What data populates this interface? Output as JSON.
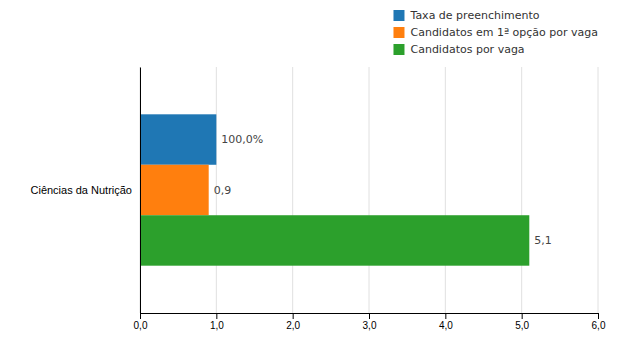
{
  "chart_data": {
    "type": "bar",
    "orientation": "horizontal",
    "categories": [
      "Ciências da Nutrição"
    ],
    "series": [
      {
        "name": "Taxa de preenchimento",
        "values": [
          1.0
        ],
        "value_labels": [
          "100,0%"
        ]
      },
      {
        "name": "Candidatos em 1ª opção por vaga",
        "values": [
          0.9
        ],
        "value_labels": [
          "0,9"
        ]
      },
      {
        "name": "Candidatos por vaga",
        "values": [
          5.1
        ],
        "value_labels": [
          "5,1"
        ]
      }
    ],
    "xlim": [
      0.0,
      6.0
    ],
    "xticks": [
      {
        "value": 0.0,
        "label": "0,0"
      },
      {
        "value": 1.0,
        "label": "1,0"
      },
      {
        "value": 2.0,
        "label": "2,0"
      },
      {
        "value": 3.0,
        "label": "3,0"
      },
      {
        "value": 4.0,
        "label": "4,0"
      },
      {
        "value": 5.0,
        "label": "5,0"
      },
      {
        "value": 6.0,
        "label": "6,0"
      }
    ],
    "grid": true,
    "legend": "upper right",
    "data_labels": true
  }
}
